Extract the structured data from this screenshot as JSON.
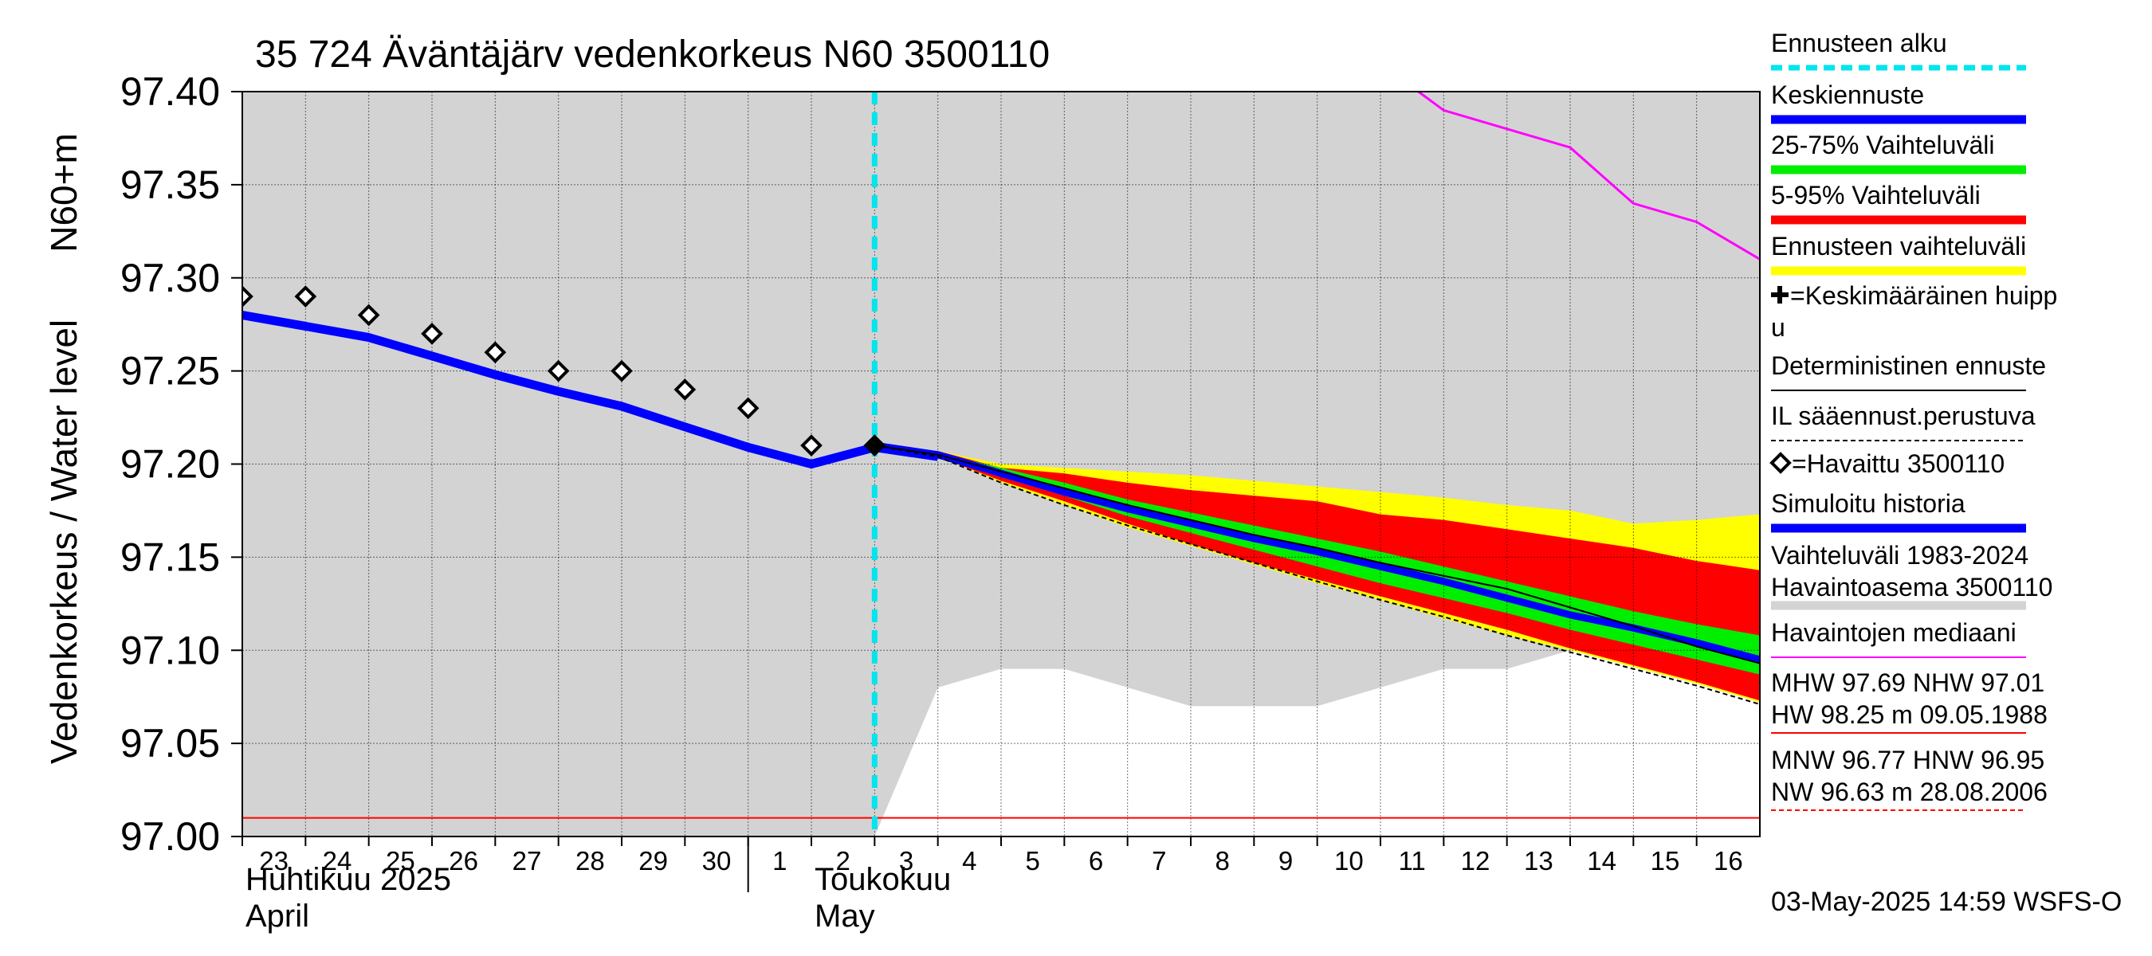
{
  "chart_data": {
    "type": "line",
    "title": "35 724 Äväntäjärv vedenkorkeus N60 3500110",
    "ylabel": "Vedenkorkeus / Water level   N60+m",
    "ylabel_parts": [
      "Vedenkorkeus / Water level",
      "N60+m"
    ],
    "ylim": [
      97.0,
      97.4
    ],
    "y_ticks": [
      97.0,
      97.05,
      97.1,
      97.15,
      97.2,
      97.25,
      97.3,
      97.35,
      97.4
    ],
    "y_tick_labels": [
      "97.00",
      "97.05",
      "97.10",
      "97.15",
      "97.20",
      "97.25",
      "97.30",
      "97.35",
      "97.40"
    ],
    "x_range_days": [
      0,
      24
    ],
    "x_ticks": [
      {
        "day": 0,
        "label": "23"
      },
      {
        "day": 1,
        "label": "24"
      },
      {
        "day": 2,
        "label": "25"
      },
      {
        "day": 3,
        "label": "26"
      },
      {
        "day": 4,
        "label": "27"
      },
      {
        "day": 5,
        "label": "28"
      },
      {
        "day": 6,
        "label": "29"
      },
      {
        "day": 7,
        "label": "30"
      },
      {
        "day": 8,
        "label": "1"
      },
      {
        "day": 9,
        "label": "2"
      },
      {
        "day": 10,
        "label": "3"
      },
      {
        "day": 11,
        "label": "4"
      },
      {
        "day": 12,
        "label": "5"
      },
      {
        "day": 13,
        "label": "6"
      },
      {
        "day": 14,
        "label": "7"
      },
      {
        "day": 15,
        "label": "8"
      },
      {
        "day": 16,
        "label": "9"
      },
      {
        "day": 17,
        "label": "10"
      },
      {
        "day": 18,
        "label": "11"
      },
      {
        "day": 19,
        "label": "12"
      },
      {
        "day": 20,
        "label": "13"
      },
      {
        "day": 21,
        "label": "14"
      },
      {
        "day": 22,
        "label": "15"
      },
      {
        "day": 23,
        "label": "16"
      }
    ],
    "month_labels": [
      {
        "day": 0,
        "line1": "Huhtikuu  2025",
        "line2": "April"
      },
      {
        "day": 9,
        "line1": "Toukokuu",
        "line2": "May"
      }
    ],
    "month_divider_day": 8,
    "forecast_start_day": 10,
    "reference_line": {
      "value": 97.01,
      "color": "#ff0000"
    },
    "history_band": {
      "name": "Vaihteluväli 1983-2024",
      "upper": 97.4,
      "lower_points": [
        [
          0,
          97.0
        ],
        [
          10,
          97.0
        ],
        [
          11,
          97.08
        ],
        [
          12,
          97.09
        ],
        [
          13,
          97.09
        ],
        [
          15,
          97.07
        ],
        [
          17,
          97.07
        ],
        [
          19,
          97.09
        ],
        [
          20,
          97.09
        ],
        [
          21,
          97.1
        ],
        [
          22,
          97.1
        ],
        [
          24,
          97.1
        ]
      ]
    },
    "median": {
      "name": "Havaintojen mediaani",
      "points": [
        [
          18.6,
          97.4
        ],
        [
          19,
          97.39
        ],
        [
          20,
          97.38
        ],
        [
          21,
          97.37
        ],
        [
          22,
          97.34
        ],
        [
          23,
          97.33
        ],
        [
          24,
          97.31
        ]
      ]
    },
    "simulated_history": {
      "name": "Simuloitu historia",
      "x": [
        0,
        1,
        2,
        3,
        4,
        5,
        6,
        7,
        8,
        9,
        10,
        11
      ],
      "y": [
        97.28,
        97.274,
        97.268,
        97.258,
        97.248,
        97.239,
        97.231,
        97.22,
        97.209,
        97.2,
        97.209,
        97.204
      ]
    },
    "observed": {
      "name": "Havaittu 3500110",
      "x": [
        0,
        1,
        2,
        3,
        4,
        5,
        6,
        7,
        8,
        9,
        10
      ],
      "y": [
        97.29,
        97.29,
        97.28,
        97.27,
        97.26,
        97.25,
        97.25,
        97.24,
        97.23,
        97.21,
        97.21
      ]
    },
    "forecast": {
      "x": [
        10,
        11,
        12,
        13,
        14,
        15,
        16,
        17,
        18,
        19,
        20,
        21,
        22,
        23,
        24
      ],
      "p_min": [
        97.21,
        97.204,
        97.19,
        97.178,
        97.166,
        97.156,
        97.146,
        97.136,
        97.127,
        97.117,
        97.108,
        97.1,
        97.091,
        97.082,
        97.072
      ],
      "p5": [
        97.21,
        97.204,
        97.191,
        97.18,
        97.168,
        97.157,
        97.147,
        97.138,
        97.129,
        97.12,
        97.111,
        97.101,
        97.092,
        97.083,
        97.073
      ],
      "p25": [
        97.21,
        97.205,
        97.193,
        97.183,
        97.172,
        97.163,
        97.154,
        97.145,
        97.136,
        97.128,
        97.12,
        97.111,
        97.103,
        97.095,
        97.087
      ],
      "mean": [
        97.21,
        97.205,
        97.195,
        97.185,
        97.176,
        97.168,
        97.16,
        97.153,
        97.145,
        97.137,
        97.128,
        97.119,
        97.112,
        97.104,
        97.095
      ],
      "p75": [
        97.21,
        97.206,
        97.198,
        97.19,
        97.181,
        97.174,
        97.167,
        97.16,
        97.153,
        97.145,
        97.137,
        97.129,
        97.121,
        97.114,
        97.108
      ],
      "p95": [
        97.21,
        97.207,
        97.198,
        97.195,
        97.19,
        97.186,
        97.183,
        97.18,
        97.173,
        97.17,
        97.165,
        97.16,
        97.155,
        97.148,
        97.143
      ],
      "p_max": [
        97.21,
        97.207,
        97.2,
        97.198,
        97.196,
        97.194,
        97.191,
        97.188,
        97.185,
        97.182,
        97.178,
        97.175,
        97.168,
        97.17,
        97.173
      ],
      "deterministic": [
        97.21,
        97.205,
        97.196,
        97.187,
        97.178,
        97.17,
        97.162,
        97.155,
        97.147,
        97.14,
        97.133,
        97.123,
        97.113,
        97.102,
        97.093
      ],
      "il_based": [
        97.21,
        97.204,
        97.19,
        97.178,
        97.167,
        97.157,
        97.147,
        97.137,
        97.127,
        97.118,
        97.108,
        97.099,
        97.09,
        97.081,
        97.071
      ]
    },
    "colors": {
      "forecast_start": "#00e5ee",
      "mean": "#0000ff",
      "band_25_75": "#00ee00",
      "band_5_95": "#ff0000",
      "band_full": "#ffff00",
      "history_band": "#d3d3d3",
      "median": "#ff00ff",
      "simulated": "#0000ff",
      "reference": "#ff0000"
    },
    "legend": [
      {
        "key": "forecast_start",
        "label": "Ennusteen alku",
        "color": "#00e5ee",
        "style": "dashed-thick"
      },
      {
        "key": "mean",
        "label": "Keskiennuste",
        "color": "#0000ff",
        "style": "thick"
      },
      {
        "key": "band_25_75",
        "label": "25-75% Vaihteluväli",
        "color": "#00ee00",
        "style": "thick"
      },
      {
        "key": "band_5_95",
        "label": "5-95% Vaihteluväli",
        "color": "#ff0000",
        "style": "thick"
      },
      {
        "key": "band_full",
        "label": "Ennusteen vaihteluväli",
        "color": "#ffff00",
        "style": "thick"
      },
      {
        "key": "avg_peak",
        "label": "=Keskimääräinen huipp",
        "label2": "u",
        "color": "#000000",
        "style": "cross"
      },
      {
        "key": "deterministic",
        "label": "Deterministinen ennuste",
        "color": "#000000",
        "style": "thin"
      },
      {
        "key": "il_based",
        "label": "IL sääennust.perustuva",
        "color": "#000000",
        "style": "dashed-thin"
      },
      {
        "key": "observed",
        "label": "=Havaittu 3500110",
        "color": "#000000",
        "style": "diamond"
      },
      {
        "key": "simulated",
        "label": "Simuloitu historia",
        "color": "#0000ff",
        "style": "thick"
      },
      {
        "key": "history_band",
        "label": "Vaihteluväli 1983-2024",
        "label2": " Havaintoasema 3500110",
        "color": "#d3d3d3",
        "style": "thick"
      },
      {
        "key": "median",
        "label": "Havaintojen mediaani",
        "color": "#ff00ff",
        "style": "thin"
      },
      {
        "key": "mhw",
        "label": "MHW  97.69 NHW  97.01",
        "label2": "HW  98.25 m 09.05.1988",
        "color": "#ff0000",
        "style": "thin"
      },
      {
        "key": "mnw",
        "label": "MNW  96.77 HNW  96.95",
        "label2": "NW  96.63 m 28.08.2006",
        "color": "#ff0000",
        "style": "dashed-thin"
      }
    ],
    "footer": "03-May-2025 14:59 WSFS-O"
  }
}
